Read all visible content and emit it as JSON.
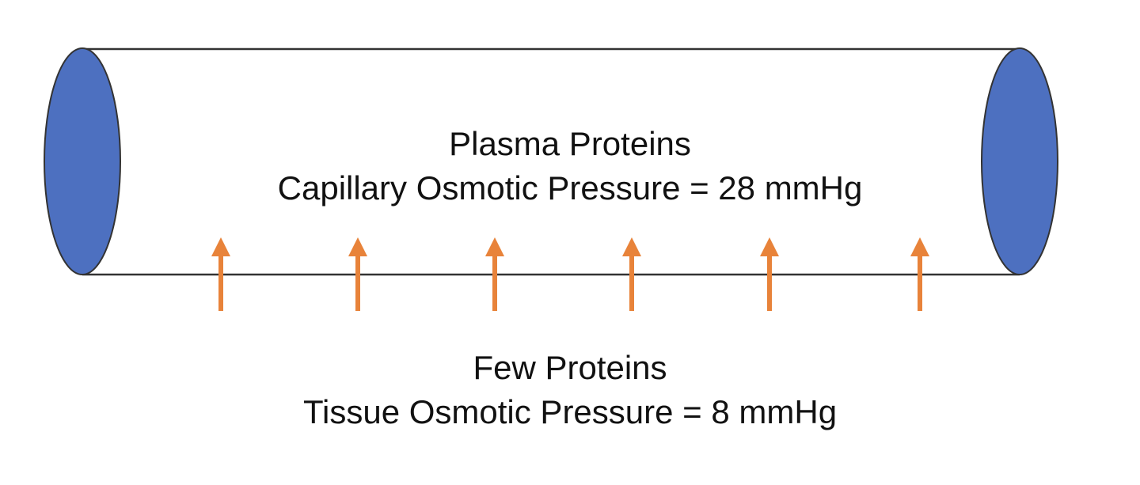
{
  "capillary": {
    "end_color": "#4D70C0",
    "outline_color": "#333333"
  },
  "inside": {
    "title": "Plasma Proteins",
    "pressure_text": "Capillary Osmotic Pressure = 28 mmHg"
  },
  "outside": {
    "title": "Few Proteins",
    "pressure_text": "Tissue Osmotic Pressure = 8 mmHg"
  },
  "arrows": {
    "color": "#E8833A",
    "count": 6,
    "direction": "up"
  }
}
